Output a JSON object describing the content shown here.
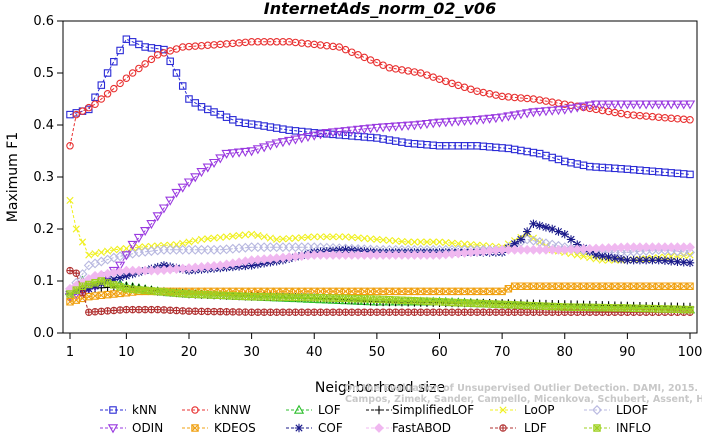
{
  "chart_data": {
    "type": "line",
    "title": "InternetAds_norm_02_v06",
    "xlabel": "Neighborhood size",
    "ylabel": "Maximum F1",
    "xlim": [
      1,
      100
    ],
    "ylim": [
      0,
      0.6
    ],
    "xticks": [
      1,
      10,
      20,
      30,
      40,
      50,
      60,
      70,
      80,
      90,
      100
    ],
    "yticks": [
      0.0,
      0.1,
      0.2,
      0.3,
      0.4,
      0.5,
      0.6
    ],
    "grid": false,
    "legend_position": "bottom",
    "credit": [
      "Campos, Zimek, Sander, Campello, Micenkova, Schubert, Assent, Houle",
      "On the Evaluation of Unsupervised Outlier Detection. DAMI, 2015."
    ],
    "series": [
      {
        "name": "kNN",
        "color": "#2a2ad6",
        "marker": "square",
        "points": [
          [
            1,
            0.42
          ],
          [
            4,
            0.43
          ],
          [
            7,
            0.5
          ],
          [
            10,
            0.565
          ],
          [
            13,
            0.55
          ],
          [
            16,
            0.545
          ],
          [
            18,
            0.5
          ],
          [
            20,
            0.45
          ],
          [
            22,
            0.435
          ],
          [
            25,
            0.42
          ],
          [
            28,
            0.405
          ],
          [
            31,
            0.4
          ],
          [
            36,
            0.39
          ],
          [
            40,
            0.385
          ],
          [
            45,
            0.38
          ],
          [
            50,
            0.375
          ],
          [
            55,
            0.365
          ],
          [
            60,
            0.36
          ],
          [
            66,
            0.36
          ],
          [
            71,
            0.355
          ],
          [
            76,
            0.345
          ],
          [
            80,
            0.33
          ],
          [
            84,
            0.32
          ],
          [
            90,
            0.315
          ],
          [
            95,
            0.31
          ],
          [
            100,
            0.305
          ]
        ]
      },
      {
        "name": "kNNW",
        "color": "#e83030",
        "marker": "circle",
        "points": [
          [
            1,
            0.36
          ],
          [
            2,
            0.42
          ],
          [
            5,
            0.44
          ],
          [
            8,
            0.47
          ],
          [
            11,
            0.5
          ],
          [
            15,
            0.535
          ],
          [
            19,
            0.55
          ],
          [
            25,
            0.555
          ],
          [
            30,
            0.56
          ],
          [
            36,
            0.56
          ],
          [
            40,
            0.555
          ],
          [
            44,
            0.55
          ],
          [
            48,
            0.53
          ],
          [
            52,
            0.51
          ],
          [
            57,
            0.5
          ],
          [
            62,
            0.48
          ],
          [
            66,
            0.465
          ],
          [
            70,
            0.455
          ],
          [
            75,
            0.45
          ],
          [
            80,
            0.44
          ],
          [
            85,
            0.43
          ],
          [
            90,
            0.42
          ],
          [
            95,
            0.415
          ],
          [
            100,
            0.41
          ]
        ]
      },
      {
        "name": "LOF",
        "color": "#2fbf2f",
        "marker": "triangle-up",
        "points": [
          [
            1,
            0.08
          ],
          [
            3,
            0.1
          ],
          [
            6,
            0.105
          ],
          [
            10,
            0.09
          ],
          [
            15,
            0.08
          ],
          [
            20,
            0.075
          ],
          [
            30,
            0.07
          ],
          [
            40,
            0.065
          ],
          [
            50,
            0.06
          ],
          [
            60,
            0.06
          ],
          [
            70,
            0.055
          ],
          [
            80,
            0.05
          ],
          [
            90,
            0.048
          ],
          [
            100,
            0.045
          ]
        ]
      },
      {
        "name": "SimplifiedLOF",
        "color": "#000000",
        "marker": "plus",
        "points": [
          [
            1,
            0.085
          ],
          [
            3,
            0.085
          ],
          [
            6,
            0.087
          ],
          [
            10,
            0.09
          ],
          [
            15,
            0.08
          ],
          [
            20,
            0.075
          ],
          [
            30,
            0.07
          ],
          [
            40,
            0.068
          ],
          [
            50,
            0.06
          ],
          [
            60,
            0.058
          ],
          [
            70,
            0.057
          ],
          [
            80,
            0.055
          ],
          [
            90,
            0.052
          ],
          [
            100,
            0.05
          ]
        ]
      },
      {
        "name": "LoOP",
        "color": "#f0f020",
        "marker": "x",
        "points": [
          [
            1,
            0.255
          ],
          [
            2,
            0.2
          ],
          [
            4,
            0.15
          ],
          [
            8,
            0.16
          ],
          [
            12,
            0.165
          ],
          [
            18,
            0.17
          ],
          [
            22,
            0.18
          ],
          [
            26,
            0.185
          ],
          [
            30,
            0.19
          ],
          [
            34,
            0.18
          ],
          [
            40,
            0.185
          ],
          [
            45,
            0.185
          ],
          [
            50,
            0.18
          ],
          [
            55,
            0.175
          ],
          [
            60,
            0.175
          ],
          [
            65,
            0.17
          ],
          [
            70,
            0.165
          ],
          [
            74,
            0.19
          ],
          [
            78,
            0.16
          ],
          [
            82,
            0.15
          ],
          [
            86,
            0.14
          ],
          [
            90,
            0.14
          ],
          [
            95,
            0.145
          ],
          [
            100,
            0.15
          ]
        ]
      },
      {
        "name": "LDOF",
        "color": "#b8b8e0",
        "marker": "diamond",
        "points": [
          [
            1,
            0.08
          ],
          [
            4,
            0.13
          ],
          [
            8,
            0.145
          ],
          [
            12,
            0.155
          ],
          [
            16,
            0.16
          ],
          [
            20,
            0.16
          ],
          [
            25,
            0.16
          ],
          [
            30,
            0.165
          ],
          [
            35,
            0.165
          ],
          [
            40,
            0.165
          ],
          [
            50,
            0.16
          ],
          [
            60,
            0.16
          ],
          [
            70,
            0.16
          ],
          [
            74,
            0.18
          ],
          [
            78,
            0.17
          ],
          [
            82,
            0.16
          ],
          [
            86,
            0.155
          ],
          [
            90,
            0.155
          ],
          [
            95,
            0.16
          ],
          [
            100,
            0.155
          ]
        ]
      },
      {
        "name": "ODIN",
        "color": "#9a3ae0",
        "marker": "triangle-down",
        "points": [
          [
            1,
            0.07
          ],
          [
            5,
            0.09
          ],
          [
            9,
            0.13
          ],
          [
            11,
            0.17
          ],
          [
            14,
            0.21
          ],
          [
            18,
            0.27
          ],
          [
            22,
            0.31
          ],
          [
            26,
            0.345
          ],
          [
            30,
            0.35
          ],
          [
            34,
            0.365
          ],
          [
            38,
            0.375
          ],
          [
            42,
            0.385
          ],
          [
            46,
            0.39
          ],
          [
            50,
            0.395
          ],
          [
            56,
            0.4
          ],
          [
            60,
            0.405
          ],
          [
            66,
            0.41
          ],
          [
            70,
            0.415
          ],
          [
            75,
            0.425
          ],
          [
            80,
            0.43
          ],
          [
            85,
            0.44
          ],
          [
            90,
            0.44
          ],
          [
            95,
            0.44
          ],
          [
            100,
            0.44
          ]
        ]
      },
      {
        "name": "KDEOS",
        "color": "#f0a010",
        "marker": "square-x",
        "points": [
          [
            1,
            0.06
          ],
          [
            4,
            0.07
          ],
          [
            8,
            0.075
          ],
          [
            12,
            0.08
          ],
          [
            20,
            0.08
          ],
          [
            30,
            0.08
          ],
          [
            40,
            0.08
          ],
          [
            50,
            0.08
          ],
          [
            60,
            0.08
          ],
          [
            70,
            0.08
          ],
          [
            72,
            0.09
          ],
          [
            80,
            0.09
          ],
          [
            90,
            0.09
          ],
          [
            100,
            0.09
          ]
        ]
      },
      {
        "name": "COF",
        "color": "#1a1a8a",
        "marker": "asterisk",
        "points": [
          [
            1,
            0.08
          ],
          [
            4,
            0.085
          ],
          [
            7,
            0.1
          ],
          [
            10,
            0.11
          ],
          [
            13,
            0.12
          ],
          [
            16,
            0.13
          ],
          [
            20,
            0.12
          ],
          [
            25,
            0.125
          ],
          [
            30,
            0.13
          ],
          [
            35,
            0.14
          ],
          [
            40,
            0.155
          ],
          [
            45,
            0.16
          ],
          [
            50,
            0.155
          ],
          [
            55,
            0.155
          ],
          [
            60,
            0.155
          ],
          [
            65,
            0.155
          ],
          [
            70,
            0.155
          ],
          [
            73,
            0.18
          ],
          [
            75,
            0.21
          ],
          [
            78,
            0.2
          ],
          [
            80,
            0.19
          ],
          [
            82,
            0.17
          ],
          [
            85,
            0.15
          ],
          [
            90,
            0.14
          ],
          [
            95,
            0.14
          ],
          [
            100,
            0.135
          ]
        ]
      },
      {
        "name": "FastABOD",
        "color": "#f0b8f0",
        "marker": "diamond-filled",
        "points": [
          [
            1,
            0.085
          ],
          [
            5,
            0.11
          ],
          [
            10,
            0.12
          ],
          [
            15,
            0.12
          ],
          [
            20,
            0.125
          ],
          [
            25,
            0.13
          ],
          [
            30,
            0.14
          ],
          [
            35,
            0.145
          ],
          [
            40,
            0.15
          ],
          [
            50,
            0.15
          ],
          [
            60,
            0.15
          ],
          [
            70,
            0.16
          ],
          [
            80,
            0.16
          ],
          [
            90,
            0.165
          ],
          [
            100,
            0.165
          ]
        ]
      },
      {
        "name": "LDF",
        "color": "#b03030",
        "marker": "circle-plus",
        "points": [
          [
            1,
            0.12
          ],
          [
            2,
            0.115
          ],
          [
            4,
            0.04
          ],
          [
            10,
            0.045
          ],
          [
            15,
            0.045
          ],
          [
            20,
            0.042
          ],
          [
            30,
            0.04
          ],
          [
            40,
            0.04
          ],
          [
            50,
            0.04
          ],
          [
            60,
            0.04
          ],
          [
            70,
            0.04
          ],
          [
            80,
            0.04
          ],
          [
            90,
            0.04
          ],
          [
            100,
            0.04
          ]
        ]
      },
      {
        "name": "INFLO",
        "color": "#9ed020",
        "marker": "square-star",
        "points": [
          [
            1,
            0.075
          ],
          [
            3,
            0.09
          ],
          [
            6,
            0.1
          ],
          [
            10,
            0.085
          ],
          [
            15,
            0.08
          ],
          [
            20,
            0.075
          ],
          [
            30,
            0.07
          ],
          [
            40,
            0.068
          ],
          [
            50,
            0.065
          ],
          [
            60,
            0.06
          ],
          [
            70,
            0.055
          ],
          [
            80,
            0.05
          ],
          [
            90,
            0.048
          ],
          [
            100,
            0.045
          ]
        ]
      }
    ]
  }
}
